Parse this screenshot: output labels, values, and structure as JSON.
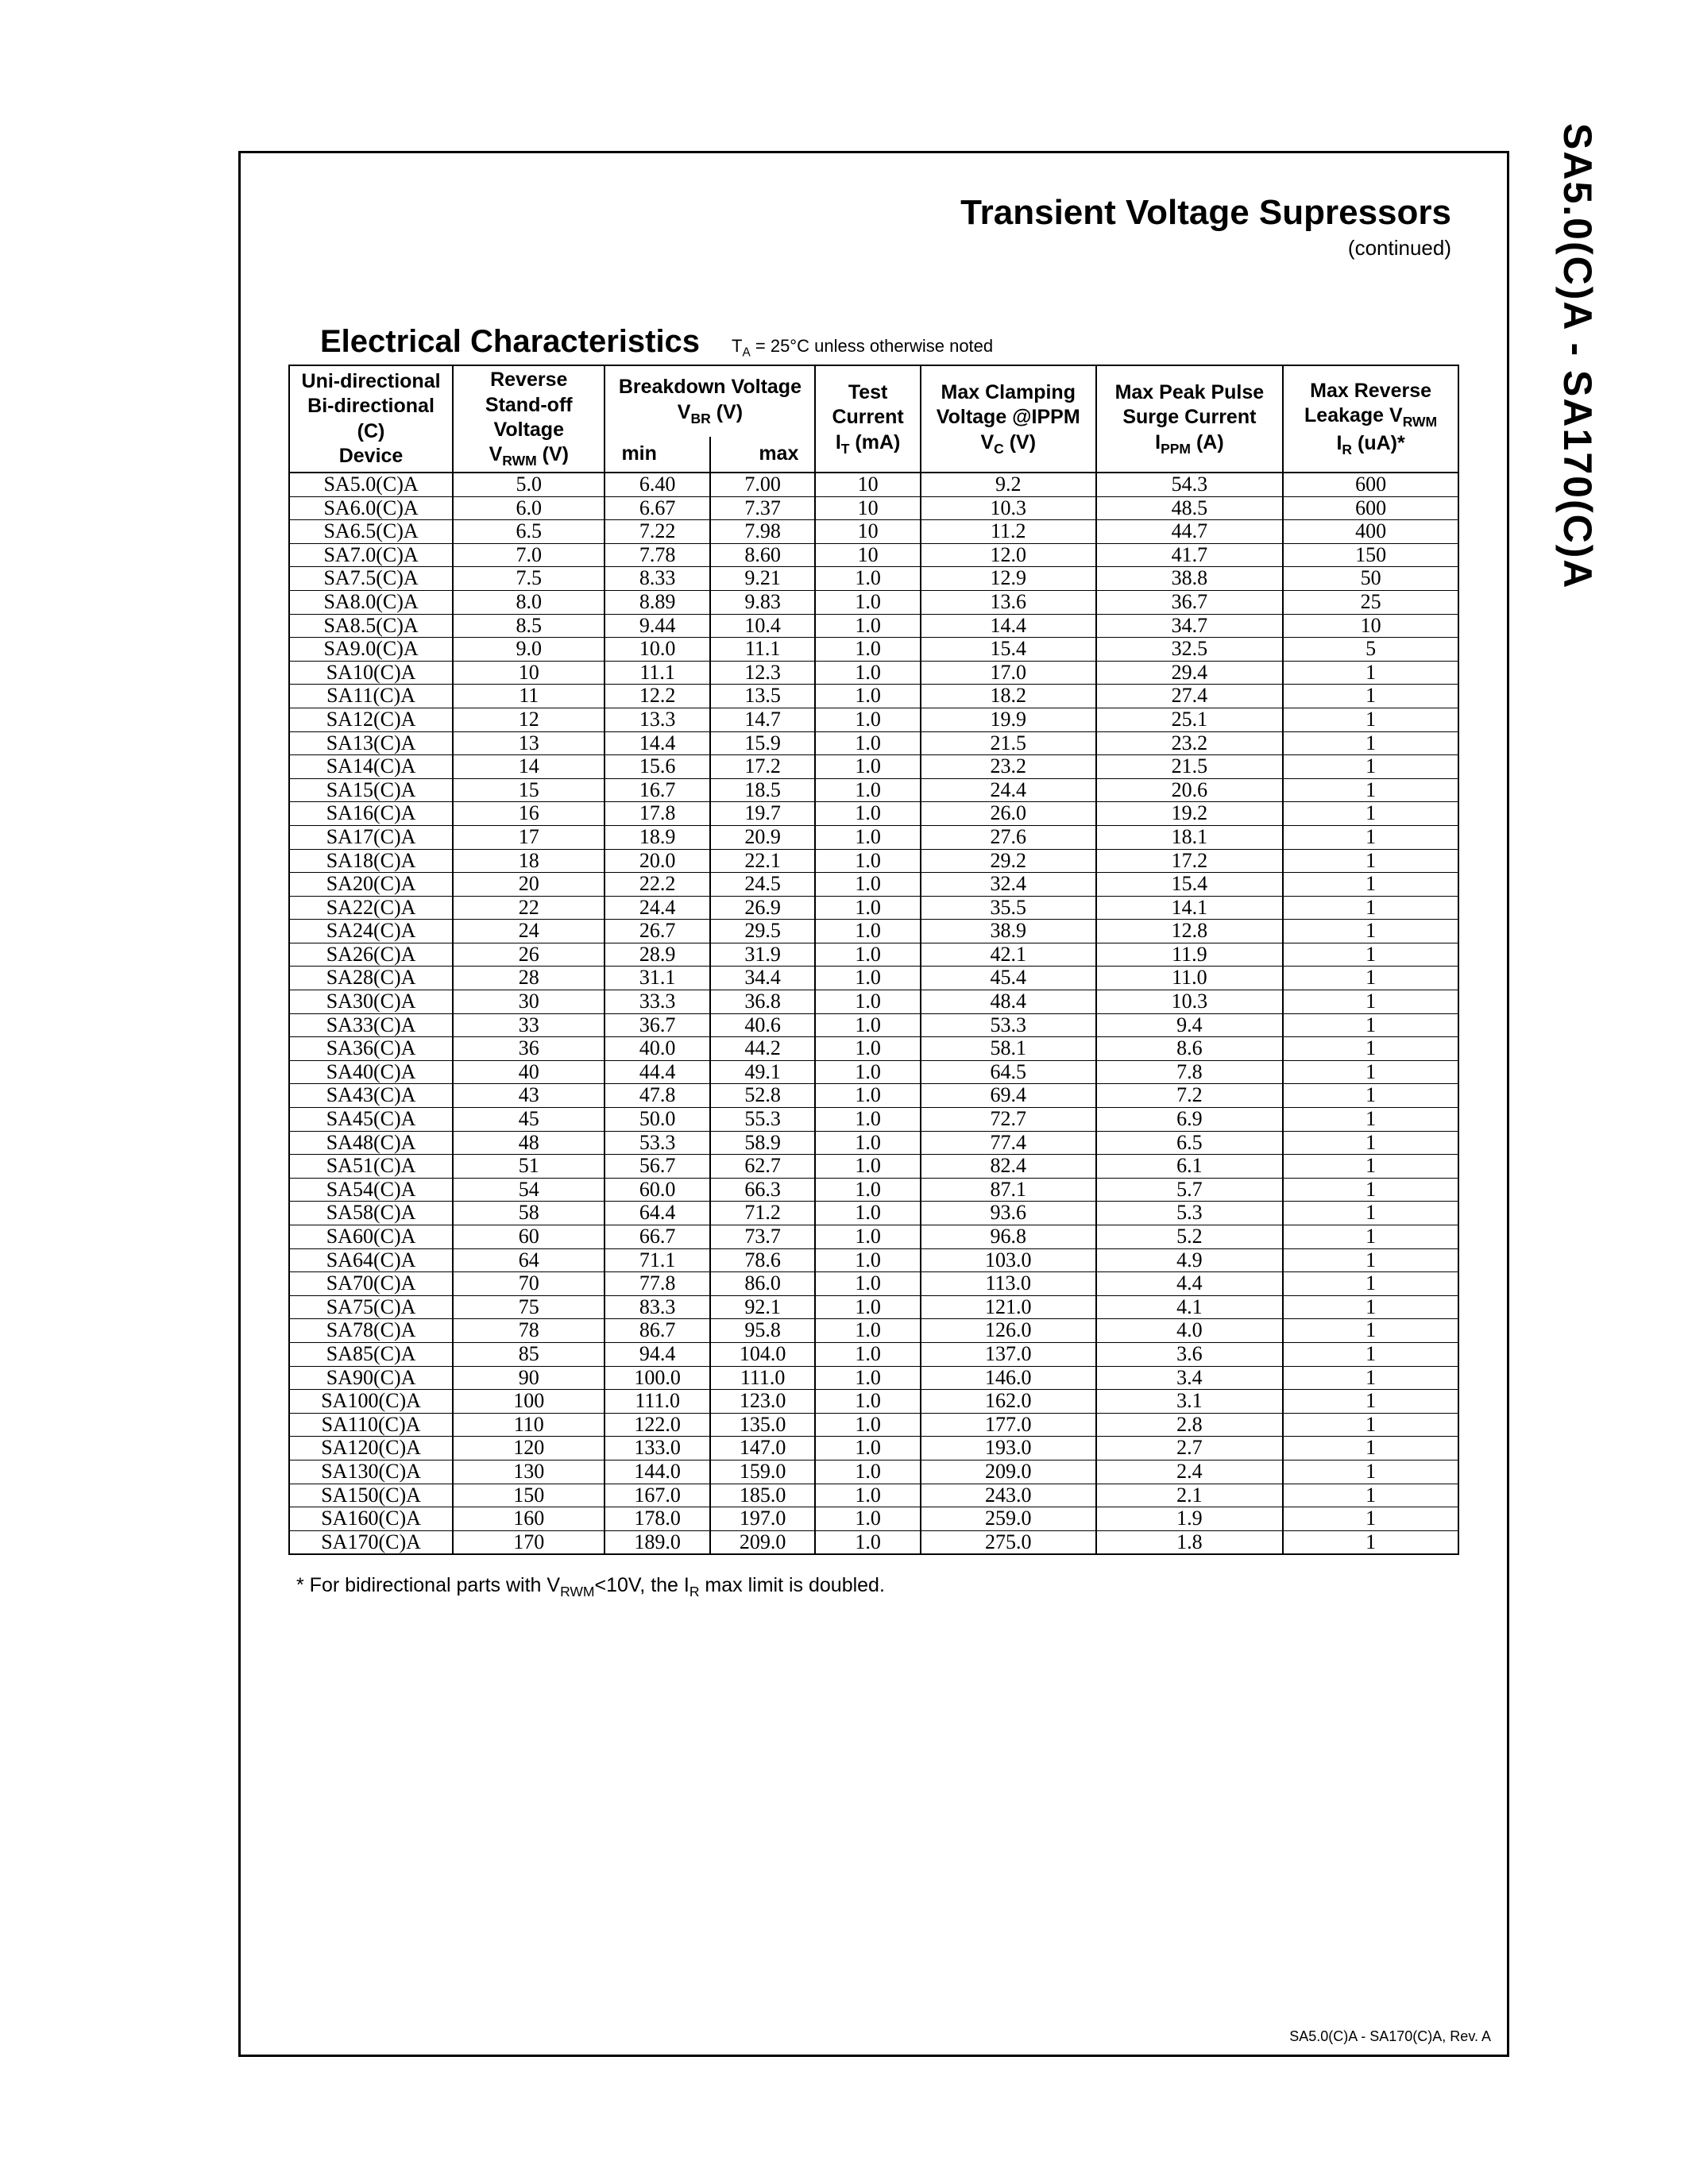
{
  "side_label": "SA5.0(C)A - SA170(C)A",
  "header": {
    "title": "Transient Voltage Supressors",
    "continued": "(continued)"
  },
  "section": {
    "title": "Electrical Characteristics",
    "note_prefix": "T",
    "note_sub": "A",
    "note_rest": " = 25°C unless otherwise noted"
  },
  "columns": {
    "device_l1": "Uni-directional",
    "device_l2": "Bi-directional (C)",
    "device_l3": "Device",
    "vrwm_l1": "Reverse",
    "vrwm_l2": "Stand-off Voltage",
    "vrwm_l3_pre": "V",
    "vrwm_l3_sub": "RWM",
    "vrwm_l3_post": " (V)",
    "vbr_l1": "Breakdown Voltage",
    "vbr_l2_pre": "V",
    "vbr_l2_sub": "BR",
    "vbr_l2_post": " (V)",
    "vbr_min": "min",
    "vbr_max": "max",
    "it_l1": "Test",
    "it_l2": "Current",
    "it_l3_pre": "I",
    "it_l3_sub": "T",
    "it_l3_post": " (mA)",
    "vc_l1": "Max  Clamping",
    "vc_l2": "Voltage @IPPM",
    "vc_l3_pre": "V",
    "vc_l3_sub": "C",
    "vc_l3_post": " (V)",
    "ippm_l1": "Max Peak Pulse",
    "ippm_l2": "Surge Current",
    "ippm_l3_pre": "I",
    "ippm_l3_sub": "PPM",
    "ippm_l3_post": " (A)",
    "ir_l1": "Max Reverse",
    "ir_l2_pre": "Leakage V",
    "ir_l2_sub": "RWM",
    "ir_l3_pre": "I",
    "ir_l3_sub": "R",
    "ir_l3_post": " (uA)*"
  },
  "rows": [
    {
      "dev": "SA5.0(C)A",
      "v": "5.0",
      "min": "6.40",
      "max": "7.00",
      "it": "10",
      "vc": "9.2",
      "ippm": "54.3",
      "ir": "600"
    },
    {
      "dev": "SA6.0(C)A",
      "v": "6.0",
      "min": "6.67",
      "max": "7.37",
      "it": "10",
      "vc": "10.3",
      "ippm": "48.5",
      "ir": "600"
    },
    {
      "dev": "SA6.5(C)A",
      "v": "6.5",
      "min": "7.22",
      "max": "7.98",
      "it": "10",
      "vc": "11.2",
      "ippm": "44.7",
      "ir": "400"
    },
    {
      "dev": "SA7.0(C)A",
      "v": "7.0",
      "min": "7.78",
      "max": "8.60",
      "it": "10",
      "vc": "12.0",
      "ippm": "41.7",
      "ir": "150"
    },
    {
      "dev": "SA7.5(C)A",
      "v": "7.5",
      "min": "8.33",
      "max": "9.21",
      "it": "1.0",
      "vc": "12.9",
      "ippm": "38.8",
      "ir": "50"
    },
    {
      "dev": "SA8.0(C)A",
      "v": "8.0",
      "min": "8.89",
      "max": "9.83",
      "it": "1.0",
      "vc": "13.6",
      "ippm": "36.7",
      "ir": "25"
    },
    {
      "dev": "SA8.5(C)A",
      "v": "8.5",
      "min": "9.44",
      "max": "10.4",
      "it": "1.0",
      "vc": "14.4",
      "ippm": "34.7",
      "ir": "10"
    },
    {
      "dev": "SA9.0(C)A",
      "v": "9.0",
      "min": "10.0",
      "max": "11.1",
      "it": "1.0",
      "vc": "15.4",
      "ippm": "32.5",
      "ir": "5"
    },
    {
      "dev": "SA10(C)A",
      "v": "10",
      "min": "11.1",
      "max": "12.3",
      "it": "1.0",
      "vc": "17.0",
      "ippm": "29.4",
      "ir": "1"
    },
    {
      "dev": "SA11(C)A",
      "v": "11",
      "min": "12.2",
      "max": "13.5",
      "it": "1.0",
      "vc": "18.2",
      "ippm": "27.4",
      "ir": "1"
    },
    {
      "dev": "SA12(C)A",
      "v": "12",
      "min": "13.3",
      "max": "14.7",
      "it": "1.0",
      "vc": "19.9",
      "ippm": "25.1",
      "ir": "1"
    },
    {
      "dev": "SA13(C)A",
      "v": "13",
      "min": "14.4",
      "max": "15.9",
      "it": "1.0",
      "vc": "21.5",
      "ippm": "23.2",
      "ir": "1"
    },
    {
      "dev": "SA14(C)A",
      "v": "14",
      "min": "15.6",
      "max": "17.2",
      "it": "1.0",
      "vc": "23.2",
      "ippm": "21.5",
      "ir": "1"
    },
    {
      "dev": "SA15(C)A",
      "v": "15",
      "min": "16.7",
      "max": "18.5",
      "it": "1.0",
      "vc": "24.4",
      "ippm": "20.6",
      "ir": "1"
    },
    {
      "dev": "SA16(C)A",
      "v": "16",
      "min": "17.8",
      "max": "19.7",
      "it": "1.0",
      "vc": "26.0",
      "ippm": "19.2",
      "ir": "1"
    },
    {
      "dev": "SA17(C)A",
      "v": "17",
      "min": "18.9",
      "max": "20.9",
      "it": "1.0",
      "vc": "27.6",
      "ippm": "18.1",
      "ir": "1"
    },
    {
      "dev": "SA18(C)A",
      "v": "18",
      "min": "20.0",
      "max": "22.1",
      "it": "1.0",
      "vc": "29.2",
      "ippm": "17.2",
      "ir": "1"
    },
    {
      "dev": "SA20(C)A",
      "v": "20",
      "min": "22.2",
      "max": "24.5",
      "it": "1.0",
      "vc": "32.4",
      "ippm": "15.4",
      "ir": "1"
    },
    {
      "dev": "SA22(C)A",
      "v": "22",
      "min": "24.4",
      "max": "26.9",
      "it": "1.0",
      "vc": "35.5",
      "ippm": "14.1",
      "ir": "1"
    },
    {
      "dev": "SA24(C)A",
      "v": "24",
      "min": "26.7",
      "max": "29.5",
      "it": "1.0",
      "vc": "38.9",
      "ippm": "12.8",
      "ir": "1"
    },
    {
      "dev": "SA26(C)A",
      "v": "26",
      "min": "28.9",
      "max": "31.9",
      "it": "1.0",
      "vc": "42.1",
      "ippm": "11.9",
      "ir": "1"
    },
    {
      "dev": "SA28(C)A",
      "v": "28",
      "min": "31.1",
      "max": "34.4",
      "it": "1.0",
      "vc": "45.4",
      "ippm": "11.0",
      "ir": "1"
    },
    {
      "dev": "SA30(C)A",
      "v": "30",
      "min": "33.3",
      "max": "36.8",
      "it": "1.0",
      "vc": "48.4",
      "ippm": "10.3",
      "ir": "1"
    },
    {
      "dev": "SA33(C)A",
      "v": "33",
      "min": "36.7",
      "max": "40.6",
      "it": "1.0",
      "vc": "53.3",
      "ippm": "9.4",
      "ir": "1"
    },
    {
      "dev": "SA36(C)A",
      "v": "36",
      "min": "40.0",
      "max": "44.2",
      "it": "1.0",
      "vc": "58.1",
      "ippm": "8.6",
      "ir": "1"
    },
    {
      "dev": "SA40(C)A",
      "v": "40",
      "min": "44.4",
      "max": "49.1",
      "it": "1.0",
      "vc": "64.5",
      "ippm": "7.8",
      "ir": "1"
    },
    {
      "dev": "SA43(C)A",
      "v": "43",
      "min": "47.8",
      "max": "52.8",
      "it": "1.0",
      "vc": "69.4",
      "ippm": "7.2",
      "ir": "1"
    },
    {
      "dev": "SA45(C)A",
      "v": "45",
      "min": "50.0",
      "max": "55.3",
      "it": "1.0",
      "vc": "72.7",
      "ippm": "6.9",
      "ir": "1"
    },
    {
      "dev": "SA48(C)A",
      "v": "48",
      "min": "53.3",
      "max": "58.9",
      "it": "1.0",
      "vc": "77.4",
      "ippm": "6.5",
      "ir": "1"
    },
    {
      "dev": "SA51(C)A",
      "v": "51",
      "min": "56.7",
      "max": "62.7",
      "it": "1.0",
      "vc": "82.4",
      "ippm": "6.1",
      "ir": "1"
    },
    {
      "dev": "SA54(C)A",
      "v": "54",
      "min": "60.0",
      "max": "66.3",
      "it": "1.0",
      "vc": "87.1",
      "ippm": "5.7",
      "ir": "1"
    },
    {
      "dev": "SA58(C)A",
      "v": "58",
      "min": "64.4",
      "max": "71.2",
      "it": "1.0",
      "vc": "93.6",
      "ippm": "5.3",
      "ir": "1"
    },
    {
      "dev": "SA60(C)A",
      "v": "60",
      "min": "66.7",
      "max": "73.7",
      "it": "1.0",
      "vc": "96.8",
      "ippm": "5.2",
      "ir": "1"
    },
    {
      "dev": "SA64(C)A",
      "v": "64",
      "min": "71.1",
      "max": "78.6",
      "it": "1.0",
      "vc": "103.0",
      "ippm": "4.9",
      "ir": "1"
    },
    {
      "dev": "SA70(C)A",
      "v": "70",
      "min": "77.8",
      "max": "86.0",
      "it": "1.0",
      "vc": "113.0",
      "ippm": "4.4",
      "ir": "1"
    },
    {
      "dev": "SA75(C)A",
      "v": "75",
      "min": "83.3",
      "max": "92.1",
      "it": "1.0",
      "vc": "121.0",
      "ippm": "4.1",
      "ir": "1"
    },
    {
      "dev": "SA78(C)A",
      "v": "78",
      "min": "86.7",
      "max": "95.8",
      "it": "1.0",
      "vc": "126.0",
      "ippm": "4.0",
      "ir": "1"
    },
    {
      "dev": "SA85(C)A",
      "v": "85",
      "min": "94.4",
      "max": "104.0",
      "it": "1.0",
      "vc": "137.0",
      "ippm": "3.6",
      "ir": "1"
    },
    {
      "dev": "SA90(C)A",
      "v": "90",
      "min": "100.0",
      "max": "111.0",
      "it": "1.0",
      "vc": "146.0",
      "ippm": "3.4",
      "ir": "1"
    },
    {
      "dev": "SA100(C)A",
      "v": "100",
      "min": "111.0",
      "max": "123.0",
      "it": "1.0",
      "vc": "162.0",
      "ippm": "3.1",
      "ir": "1"
    },
    {
      "dev": "SA110(C)A",
      "v": "110",
      "min": "122.0",
      "max": "135.0",
      "it": "1.0",
      "vc": "177.0",
      "ippm": "2.8",
      "ir": "1"
    },
    {
      "dev": "SA120(C)A",
      "v": "120",
      "min": "133.0",
      "max": "147.0",
      "it": "1.0",
      "vc": "193.0",
      "ippm": "2.7",
      "ir": "1"
    },
    {
      "dev": "SA130(C)A",
      "v": "130",
      "min": "144.0",
      "max": "159.0",
      "it": "1.0",
      "vc": "209.0",
      "ippm": "2.4",
      "ir": "1"
    },
    {
      "dev": "SA150(C)A",
      "v": "150",
      "min": "167.0",
      "max": "185.0",
      "it": "1.0",
      "vc": "243.0",
      "ippm": "2.1",
      "ir": "1"
    },
    {
      "dev": "SA160(C)A",
      "v": "160",
      "min": "178.0",
      "max": "197.0",
      "it": "1.0",
      "vc": "259.0",
      "ippm": "1.9",
      "ir": "1"
    },
    {
      "dev": "SA170(C)A",
      "v": "170",
      "min": "189.0",
      "max": "209.0",
      "it": "1.0",
      "vc": "275.0",
      "ippm": "1.8",
      "ir": "1"
    }
  ],
  "footnote": {
    "p1": "* For bidirectional parts with V",
    "sub1": "RWM",
    "p2": "<10V, the I",
    "sub2": "R",
    "p3": " max limit is doubled."
  },
  "footer": "SA5.0(C)A - SA170(C)A, Rev. A",
  "col_widths": [
    "14%",
    "13%",
    "9%",
    "9%",
    "9%",
    "15%",
    "16%",
    "15%"
  ]
}
